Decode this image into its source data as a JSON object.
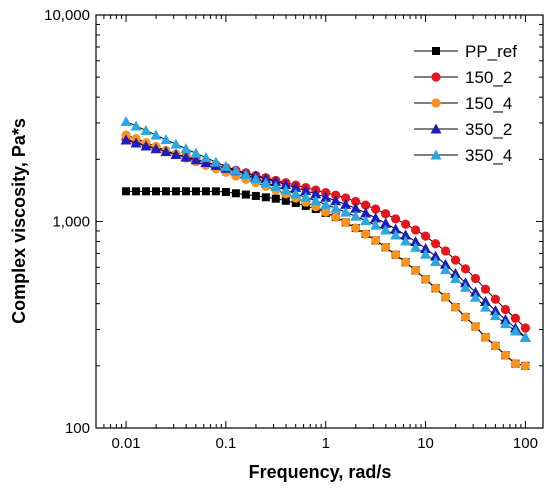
{
  "chart_data": {
    "type": "line",
    "xscale": "log",
    "yscale": "log",
    "xlabel": "Frequency, rad/s",
    "ylabel": "Complex viscosity, Pa*s",
    "xlim": [
      0.005,
      150
    ],
    "ylim": [
      100,
      10000
    ],
    "xticks": [
      {
        "value": 0.01,
        "label": "0.01"
      },
      {
        "value": 0.1,
        "label": "0.1"
      },
      {
        "value": 1,
        "label": "1"
      },
      {
        "value": 10,
        "label": "10"
      },
      {
        "value": 100,
        "label": "100"
      }
    ],
    "yticks": [
      {
        "value": 100,
        "label": "100"
      },
      {
        "value": 1000,
        "label": "1,000"
      },
      {
        "value": 10000,
        "label": "10,000"
      }
    ],
    "legend_position": "top-right",
    "x": [
      0.01,
      0.01259,
      0.01585,
      0.01995,
      0.02512,
      0.03162,
      0.03981,
      0.05012,
      0.0631,
      0.07943,
      0.1,
      0.1259,
      0.1585,
      0.1995,
      0.2512,
      0.3162,
      0.3981,
      0.5012,
      0.631,
      0.7943,
      1,
      1.259,
      1.585,
      1.995,
      2.512,
      3.162,
      3.981,
      5.012,
      6.31,
      7.943,
      10,
      12.59,
      15.85,
      19.95,
      25.12,
      31.62,
      39.81,
      50.12,
      63.1,
      79.43,
      100
    ],
    "series": [
      {
        "name": "PP_ref",
        "color": "#000000",
        "marker": "square",
        "values": [
          1400,
          1400,
          1400,
          1400,
          1400,
          1400,
          1400,
          1400,
          1400,
          1400,
          1390,
          1370,
          1350,
          1330,
          1310,
          1290,
          1260,
          1230,
          1190,
          1150,
          1100,
          1050,
          990,
          930,
          870,
          810,
          750,
          690,
          635,
          580,
          525,
          475,
          430,
          385,
          345,
          310,
          275,
          250,
          225,
          205,
          200
        ]
      },
      {
        "name": "150_2",
        "color": "#e8141c",
        "marker": "circle",
        "values": [
          2500,
          2420,
          2340,
          2260,
          2190,
          2120,
          2060,
          2000,
          1940,
          1880,
          1820,
          1770,
          1720,
          1670,
          1630,
          1580,
          1540,
          1500,
          1460,
          1420,
          1380,
          1340,
          1300,
          1250,
          1200,
          1150,
          1090,
          1030,
          970,
          910,
          850,
          780,
          720,
          650,
          590,
          530,
          470,
          420,
          375,
          340,
          305
        ]
      },
      {
        "name": "150_4",
        "color": "#f7931e",
        "marker": "circle",
        "values": [
          2620,
          2520,
          2410,
          2310,
          2210,
          2120,
          2030,
          1950,
          1870,
          1800,
          1730,
          1660,
          1600,
          1540,
          1480,
          1420,
          1360,
          1300,
          1240,
          1180,
          1110,
          1050,
          990,
          930,
          870,
          810,
          750,
          690,
          635,
          580,
          525,
          475,
          430,
          385,
          345,
          310,
          275,
          250,
          225,
          205,
          200
        ]
      },
      {
        "name": "350_2",
        "color": "#1c1cbf",
        "marker": "triangle",
        "values": [
          2480,
          2400,
          2320,
          2250,
          2180,
          2110,
          2050,
          1990,
          1930,
          1870,
          1810,
          1760,
          1710,
          1660,
          1610,
          1560,
          1510,
          1460,
          1410,
          1360,
          1310,
          1260,
          1210,
          1160,
          1100,
          1040,
          980,
          920,
          860,
          800,
          740,
          680,
          620,
          560,
          505,
          455,
          410,
          370,
          335,
          305,
          275
        ]
      },
      {
        "name": "350_4",
        "color": "#29a8e0",
        "marker": "triangle",
        "values": [
          3050,
          2900,
          2760,
          2620,
          2490,
          2370,
          2250,
          2140,
          2040,
          1940,
          1850,
          1770,
          1690,
          1610,
          1540,
          1480,
          1420,
          1360,
          1310,
          1260,
          1210,
          1160,
          1110,
          1060,
          1010,
          960,
          910,
          860,
          805,
          750,
          695,
          640,
          585,
          530,
          480,
          430,
          385,
          350,
          320,
          295,
          275
        ]
      }
    ]
  }
}
